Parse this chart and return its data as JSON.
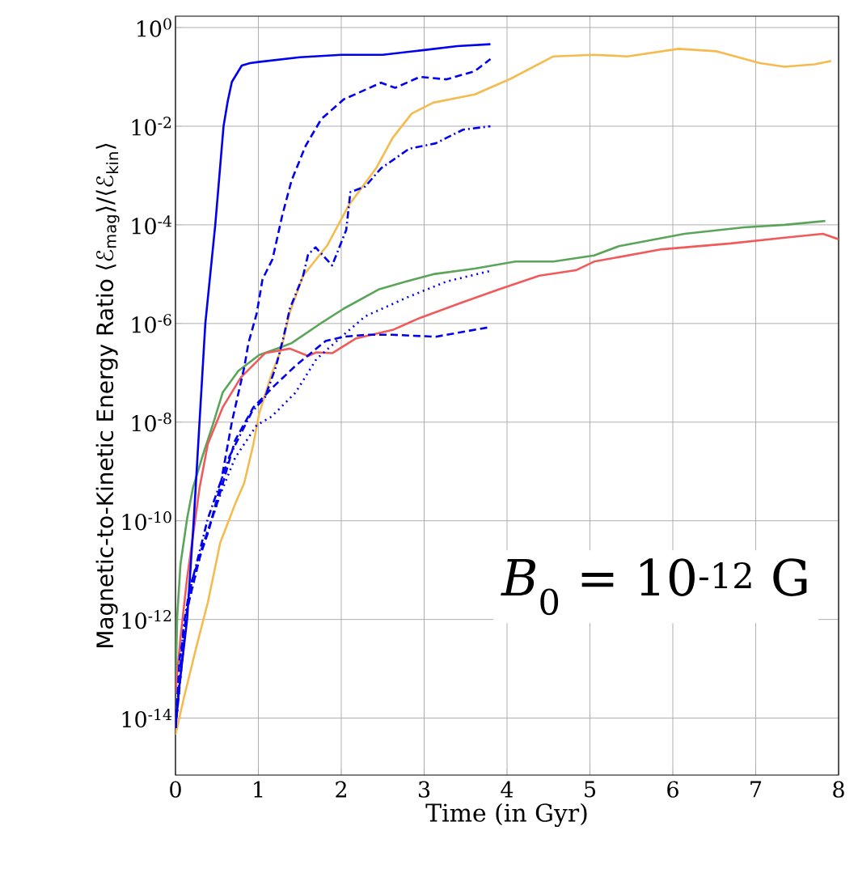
{
  "chart_data": {
    "type": "line",
    "xlabel": "Time (in Gyr)",
    "ylabel": "Magnetic-to-Kinetic Energy Ratio ⟨ℰ$_{mag}$⟩/⟨ℰ$_{kin}$⟩",
    "annotations": [
      "*B*$_{0}$ = 10$^{-12}$ G"
    ],
    "log": "y",
    "grid": true,
    "xlim": [
      0,
      8
    ],
    "xticks": [
      0,
      1,
      2,
      3,
      4,
      5,
      6,
      7,
      8
    ],
    "ylim": [
      7e-16,
      1.7
    ],
    "yticks": [
      {
        "value": 1e-14,
        "label": "10$^{-14}$"
      },
      {
        "value": 1e-12,
        "label": "10$^{-12}$"
      },
      {
        "value": 1e-10,
        "label": "10$^{-10}$"
      },
      {
        "value": 1e-08,
        "label": "10$^{-8}$"
      },
      {
        "value": 1e-06,
        "label": "10$^{-6}$"
      },
      {
        "value": 0.0001,
        "label": "10$^{-4}$"
      },
      {
        "value": 0.01,
        "label": "10$^{-2}$"
      },
      {
        "value": 1,
        "label": "10$^{0}$"
      }
    ],
    "series": [
      {
        "color": "#f5bb4e",
        "line_style": "solid",
        "x": [
          0,
          0.1,
          0.25,
          0.39,
          0.54,
          0.72,
          0.83,
          0.94,
          1.01,
          1.16,
          1.27,
          1.38,
          1.54,
          1.83,
          2.09,
          2.42,
          2.62,
          2.85,
          3.11,
          3.61,
          4.04,
          4.56,
          5.05,
          5.45,
          6.07,
          6.53,
          7.05,
          7.35,
          7.71,
          7.91
        ],
        "values": [
          4.6e-15,
          2.5e-14,
          2.7e-13,
          2.2e-12,
          3.6e-11,
          2.2e-10,
          5.9e-10,
          3.6e-09,
          1.5e-08,
          9.5e-08,
          2.8e-07,
          1.7e-06,
          9.3e-06,
          3.8e-05,
          0.00025,
          0.0014,
          0.0058,
          0.018,
          0.03,
          0.044,
          0.091,
          0.26,
          0.28,
          0.26,
          0.37,
          0.33,
          0.19,
          0.16,
          0.18,
          0.21
        ]
      },
      {
        "color": "#5aa55a",
        "line_style": "solid",
        "x": [
          0,
          0.02,
          0.06,
          0.14,
          0.21,
          0.32,
          0.46,
          0.57,
          0.76,
          1.01,
          1.27,
          1.4,
          1.73,
          2.03,
          2.45,
          2.78,
          3.11,
          3.61,
          4.1,
          4.56,
          5.05,
          5.35,
          6.14,
          6.86,
          7.35,
          7.84
        ],
        "values": [
          3.2e-14,
          1.1e-12,
          1.3e-11,
          1.1e-10,
          4.6e-10,
          1.9e-09,
          1e-08,
          4e-08,
          1.1e-07,
          2.3e-07,
          3.3e-07,
          4e-07,
          9.5e-07,
          2e-06,
          4.9e-06,
          7.1e-06,
          1e-05,
          1.3e-05,
          1.8e-05,
          1.8e-05,
          2.4e-05,
          3.7e-05,
          6.6e-05,
          8.9e-05,
          0.0001,
          0.00012
        ]
      },
      {
        "color": "#f05a5a",
        "line_style": "solid",
        "x": [
          0,
          0.06,
          0.14,
          0.29,
          0.39,
          0.57,
          0.79,
          1.08,
          1.38,
          1.6,
          1.7,
          1.89,
          2.18,
          2.62,
          2.95,
          3.44,
          3.9,
          4.39,
          4.83,
          5.05,
          5.87,
          6.7,
          7.35,
          7.81,
          8.0
        ],
        "values": [
          3.2e-14,
          4.2e-13,
          6.8e-12,
          4.6e-10,
          3.6e-09,
          2e-08,
          8.1e-08,
          2.5e-07,
          3.1e-07,
          2.2e-07,
          2.6e-07,
          2.5e-07,
          5e-07,
          7.4e-07,
          1.3e-06,
          2.6e-06,
          4.9e-06,
          9.3e-06,
          1.2e-05,
          1.8e-05,
          3.2e-05,
          4.2e-05,
          5.5e-05,
          6.6e-05,
          5.1e-05
        ]
      },
      {
        "color": "#0000ee",
        "line_style": "solid",
        "x": [
          0,
          0.05,
          0.14,
          0.22,
          0.29,
          0.36,
          0.42,
          0.48,
          0.53,
          0.58,
          0.63,
          0.68,
          0.8,
          0.9,
          1.0,
          1.5,
          2.0,
          2.5,
          3.0,
          3.4,
          3.8
        ],
        "values": [
          6.3e-15,
          5e-14,
          1e-12,
          1e-10,
          1e-08,
          1e-06,
          1e-05,
          0.0001,
          0.001,
          0.01,
          0.032,
          0.079,
          0.17,
          0.19,
          0.2,
          0.25,
          0.28,
          0.28,
          0.35,
          0.42,
          0.46
        ]
      },
      {
        "color": "#0000ee",
        "line_style": "dashed",
        "x": [
          0,
          0.05,
          0.2,
          0.4,
          0.54,
          0.68,
          0.83,
          0.88,
          0.98,
          1.05,
          1.17,
          1.29,
          1.4,
          1.57,
          1.76,
          2.03,
          2.48,
          2.65,
          2.95,
          3.27,
          3.61,
          3.8
        ],
        "values": [
          6.3e-15,
          1.6e-13,
          6.3e-12,
          6.3e-11,
          5e-10,
          1e-08,
          1.3e-07,
          4e-07,
          1.6e-06,
          7.9e-06,
          2e-05,
          0.00016,
          0.00079,
          0.004,
          0.014,
          0.035,
          0.076,
          0.06,
          0.1,
          0.089,
          0.13,
          0.23
        ]
      },
      {
        "color": "#0000ee",
        "line_style": "dashdot",
        "x": [
          0,
          0.1,
          0.16,
          0.39,
          0.65,
          0.92,
          1.08,
          1.21,
          1.3,
          1.38,
          1.54,
          1.6,
          1.69,
          1.89,
          2.06,
          2.11,
          2.29,
          2.48,
          2.82,
          3.14,
          3.47,
          3.8
        ],
        "values": [
          6.3e-15,
          7.9e-13,
          3.2e-12,
          1.1e-10,
          2e-09,
          1.6e-08,
          3.2e-08,
          1.3e-07,
          5e-07,
          2e-06,
          9.3e-06,
          2.5e-05,
          3.5e-05,
          1.5e-05,
          7.9e-05,
          0.00046,
          0.0006,
          0.0014,
          0.0035,
          0.0045,
          0.0085,
          0.01
        ]
      },
      {
        "color": "#0000ee",
        "line_style": "dashed",
        "x": [
          0,
          0.14,
          0.32,
          0.5,
          0.72,
          0.94,
          1.19,
          1.45,
          1.81,
          2.03,
          2.29,
          2.62,
          3.14,
          3.8
        ],
        "values": [
          6.3e-15,
          1.6e-12,
          2.8e-11,
          2.2e-10,
          4.3e-09,
          2e-08,
          5.4e-08,
          1.4e-07,
          4.4e-07,
          5.4e-07,
          5.9e-07,
          5.9e-07,
          5.4e-07,
          8.5e-07
        ]
      },
      {
        "color": "#0000ee",
        "line_style": "dotted",
        "x": [
          0,
          0.14,
          0.32,
          0.54,
          0.72,
          0.98,
          1.16,
          1.45,
          1.7,
          2.03,
          2.29,
          2.78,
          3.27,
          3.83
        ],
        "values": [
          6.3e-15,
          1.6e-12,
          2.8e-11,
          3.4e-10,
          1.9e-09,
          8.7e-09,
          1.3e-08,
          4e-08,
          1.9e-07,
          5.9e-07,
          1.4e-06,
          3.3e-06,
          7.1e-06,
          1.2e-05
        ]
      }
    ]
  }
}
